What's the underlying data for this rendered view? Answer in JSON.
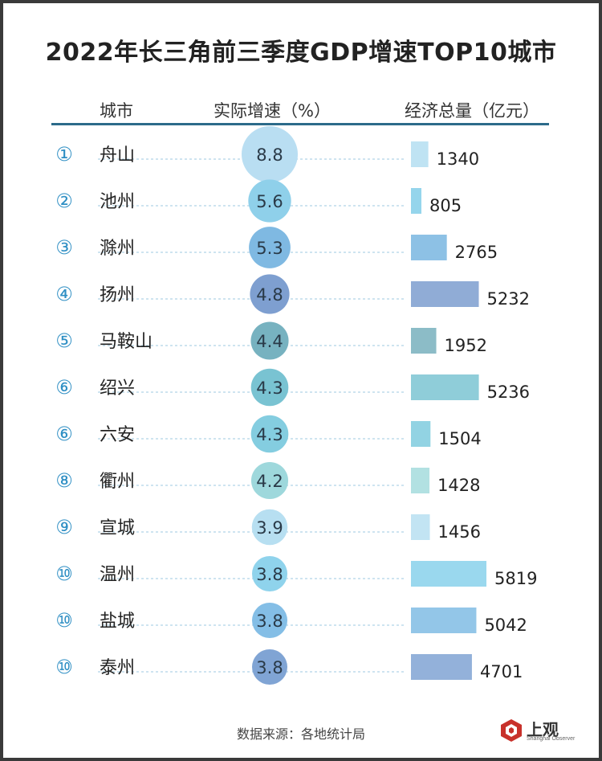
{
  "title": "2022年长三角前三季度GDP增速TOP10城市",
  "headers": {
    "city": "城市",
    "growth": "实际增速（%）",
    "gdp": "经济总量（亿元）"
  },
  "source": "数据来源：各地统计局",
  "logo": {
    "name": "上观",
    "sub": "Shanghai Observer",
    "icon": "shangguan-logo-icon"
  },
  "chart_data": {
    "type": "table",
    "title": "2022年长三角前三季度GDP增速TOP10城市",
    "columns": [
      "城市",
      "实际增速（%）",
      "经济总量（亿元）"
    ],
    "rows": [
      {
        "rank": "①",
        "city": "舟山",
        "growth": 8.8,
        "gdp": 1340,
        "circle_color": "#b9def2",
        "bar_color": "#bfe3f3"
      },
      {
        "rank": "②",
        "city": "池州",
        "growth": 5.6,
        "gdp": 805,
        "circle_color": "#8fd0ea",
        "bar_color": "#95d5ec"
      },
      {
        "rank": "③",
        "city": "滁州",
        "growth": 5.3,
        "gdp": 2765,
        "circle_color": "#7fb9e2",
        "bar_color": "#8dc1e5"
      },
      {
        "rank": "④",
        "city": "扬州",
        "growth": 4.8,
        "gdp": 5232,
        "circle_color": "#7e9fd0",
        "bar_color": "#90acd6"
      },
      {
        "rank": "⑤",
        "city": "马鞍山",
        "growth": 4.4,
        "gdp": 1952,
        "circle_color": "#77b2c0",
        "bar_color": "#8cbcc7"
      },
      {
        "rank": "⑥",
        "city": "绍兴",
        "growth": 4.3,
        "gdp": 5236,
        "circle_color": "#79c3d2",
        "bar_color": "#8fcdd9"
      },
      {
        "rank": "⑥",
        "city": "六安",
        "growth": 4.3,
        "gdp": 1504,
        "circle_color": "#84cde0",
        "bar_color": "#92d3e3"
      },
      {
        "rank": "⑧",
        "city": "衢州",
        "growth": 4.2,
        "gdp": 1428,
        "circle_color": "#9ed8dc",
        "bar_color": "#b2e1e2"
      },
      {
        "rank": "⑨",
        "city": "宣城",
        "growth": 3.9,
        "gdp": 1456,
        "circle_color": "#b7dff1",
        "bar_color": "#c2e4f3"
      },
      {
        "rank": "⑩",
        "city": "温州",
        "growth": 3.8,
        "gdp": 5819,
        "circle_color": "#8fd3ec",
        "bar_color": "#9ad8ee"
      },
      {
        "rank": "⑩",
        "city": "盐城",
        "growth": 3.8,
        "gdp": 5042,
        "circle_color": "#84bee6",
        "bar_color": "#93c6e8"
      },
      {
        "rank": "⑩",
        "city": "泰州",
        "growth": 3.8,
        "gdp": 4701,
        "circle_color": "#80a4d4",
        "bar_color": "#93b1da"
      }
    ],
    "growth_max": 8.8,
    "gdp_max": 5819,
    "accent_color": "#2c6b8a",
    "rank_color": "#2f8fc4"
  }
}
